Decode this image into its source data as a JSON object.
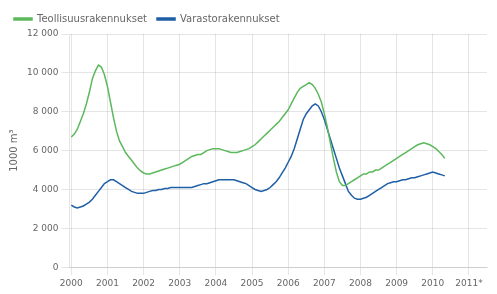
{
  "chart_data": {
    "type": "line",
    "ylabel": "1000 m³",
    "x": [
      2000,
      2000.0833333333,
      2000.1666666667,
      2000.25,
      2000.3333333333,
      2000.4166666667,
      2000.5,
      2000.5833333333,
      2000.6666666667,
      2000.75,
      2000.8333333333,
      2000.9166666667,
      2001,
      2001.0833333333,
      2001.1666666667,
      2001.25,
      2001.3333333333,
      2001.4166666667,
      2001.5,
      2001.5833333333,
      2001.6666666667,
      2001.75,
      2001.8333333333,
      2001.9166666667,
      2002,
      2002.0833333333,
      2002.1666666667,
      2002.25,
      2002.3333333333,
      2002.4166666667,
      2002.5,
      2002.5833333333,
      2002.6666666667,
      2002.75,
      2002.8333333333,
      2002.9166666667,
      2003,
      2003.0833333333,
      2003.1666666667,
      2003.25,
      2003.3333333333,
      2003.4166666667,
      2003.5,
      2003.5833333333,
      2003.6666666667,
      2003.75,
      2003.8333333333,
      2003.9166666667,
      2004,
      2004.0833333333,
      2004.1666666667,
      2004.25,
      2004.3333333333,
      2004.4166666667,
      2004.5,
      2004.5833333333,
      2004.6666666667,
      2004.75,
      2004.8333333333,
      2004.9166666667,
      2005,
      2005.0833333333,
      2005.1666666667,
      2005.25,
      2005.3333333333,
      2005.4166666667,
      2005.5,
      2005.5833333333,
      2005.6666666667,
      2005.75,
      2005.8333333333,
      2005.9166666667,
      2006,
      2006.0833333333,
      2006.1666666667,
      2006.25,
      2006.3333333333,
      2006.4166666667,
      2006.5,
      2006.5833333333,
      2006.6666666667,
      2006.75,
      2006.8333333333,
      2006.9166666667,
      2007,
      2007.0833333333,
      2007.1666666667,
      2007.25,
      2007.3333333333,
      2007.4166666667,
      2007.5,
      2007.5833333333,
      2007.6666666667,
      2007.75,
      2007.8333333333,
      2007.9166666667,
      2008,
      2008.0833333333,
      2008.1666666667,
      2008.25,
      2008.3333333333,
      2008.4166666667,
      2008.5,
      2008.5833333333,
      2008.6666666667,
      2008.75,
      2008.8333333333,
      2008.9166666667,
      2009,
      2009.0833333333,
      2009.1666666667,
      2009.25,
      2009.3333333333,
      2009.4166666667,
      2009.5,
      2009.5833333333,
      2009.6666666667,
      2009.75,
      2009.8333333333,
      2009.9166666667,
      2010,
      2010.0833333333,
      2010.1666666667,
      2010.25,
      2010.3333333333
    ],
    "series": [
      {
        "name": "Teollisuusrakennukset",
        "color": "#5cb85c",
        "values": [
          6700,
          6850,
          7100,
          7500,
          7900,
          8400,
          9000,
          9700,
          10100,
          10400,
          10300,
          9900,
          9300,
          8500,
          7700,
          7000,
          6500,
          6200,
          5900,
          5700,
          5500,
          5300,
          5100,
          4950,
          4850,
          4800,
          4800,
          4850,
          4900,
          4950,
          5000,
          5050,
          5100,
          5150,
          5200,
          5250,
          5300,
          5400,
          5500,
          5600,
          5700,
          5750,
          5800,
          5800,
          5900,
          6000,
          6050,
          6100,
          6100,
          6100,
          6050,
          6000,
          5950,
          5900,
          5900,
          5900,
          5950,
          6000,
          6050,
          6100,
          6200,
          6300,
          6450,
          6600,
          6750,
          6900,
          7050,
          7200,
          7350,
          7500,
          7700,
          7900,
          8100,
          8400,
          8700,
          9000,
          9200,
          9300,
          9400,
          9500,
          9400,
          9200,
          8900,
          8500,
          7900,
          7200,
          6400,
          5600,
          4900,
          4400,
          4200,
          4200,
          4300,
          4400,
          4500,
          4600,
          4700,
          4800,
          4800,
          4900,
          4900,
          5000,
          5000,
          5100,
          5200,
          5300,
          5400,
          5500,
          5600,
          5700,
          5800,
          5900,
          6000,
          6100,
          6200,
          6300,
          6350,
          6400,
          6350,
          6300,
          6200,
          6100,
          5950,
          5800,
          5600
        ]
      },
      {
        "name": "Varastorakennukset",
        "color": "#1f5fa6",
        "values": [
          3200,
          3100,
          3050,
          3100,
          3150,
          3250,
          3350,
          3500,
          3700,
          3900,
          4100,
          4300,
          4400,
          4500,
          4500,
          4400,
          4300,
          4200,
          4100,
          4000,
          3900,
          3850,
          3800,
          3800,
          3800,
          3850,
          3900,
          3950,
          3950,
          4000,
          4000,
          4050,
          4050,
          4100,
          4100,
          4100,
          4100,
          4100,
          4100,
          4100,
          4100,
          4150,
          4200,
          4250,
          4300,
          4300,
          4350,
          4400,
          4450,
          4500,
          4500,
          4500,
          4500,
          4500,
          4500,
          4450,
          4400,
          4350,
          4300,
          4200,
          4100,
          4000,
          3950,
          3900,
          3950,
          4000,
          4100,
          4250,
          4400,
          4600,
          4850,
          5100,
          5400,
          5700,
          6100,
          6600,
          7100,
          7600,
          7900,
          8100,
          8300,
          8400,
          8300,
          8000,
          7600,
          7100,
          6600,
          6100,
          5600,
          5100,
          4700,
          4300,
          3900,
          3700,
          3550,
          3500,
          3500,
          3550,
          3600,
          3700,
          3800,
          3900,
          4000,
          4100,
          4200,
          4300,
          4350,
          4400,
          4400,
          4450,
          4500,
          4500,
          4550,
          4600,
          4600,
          4650,
          4700,
          4750,
          4800,
          4850,
          4900,
          4850,
          4800,
          4750,
          4700
        ]
      }
    ],
    "xlim": [
      1999.95,
      2011.5
    ],
    "xticks": [
      2000,
      2001,
      2002,
      2003,
      2004,
      2005,
      2006,
      2007,
      2008,
      2009,
      2010,
      {
        "value": 2011,
        "label": "2011*"
      }
    ],
    "ylim": [
      0,
      12000
    ],
    "yticks": [
      0,
      {
        "value": 2000,
        "label": "2 000"
      },
      {
        "value": 4000,
        "label": "4 000"
      },
      {
        "value": 6000,
        "label": "6 000"
      },
      {
        "value": 8000,
        "label": "8 000"
      },
      {
        "value": 10000,
        "label": "10 000"
      },
      {
        "value": 12000,
        "label": "12 000"
      }
    ],
    "grid": true,
    "legend": "upper left"
  }
}
